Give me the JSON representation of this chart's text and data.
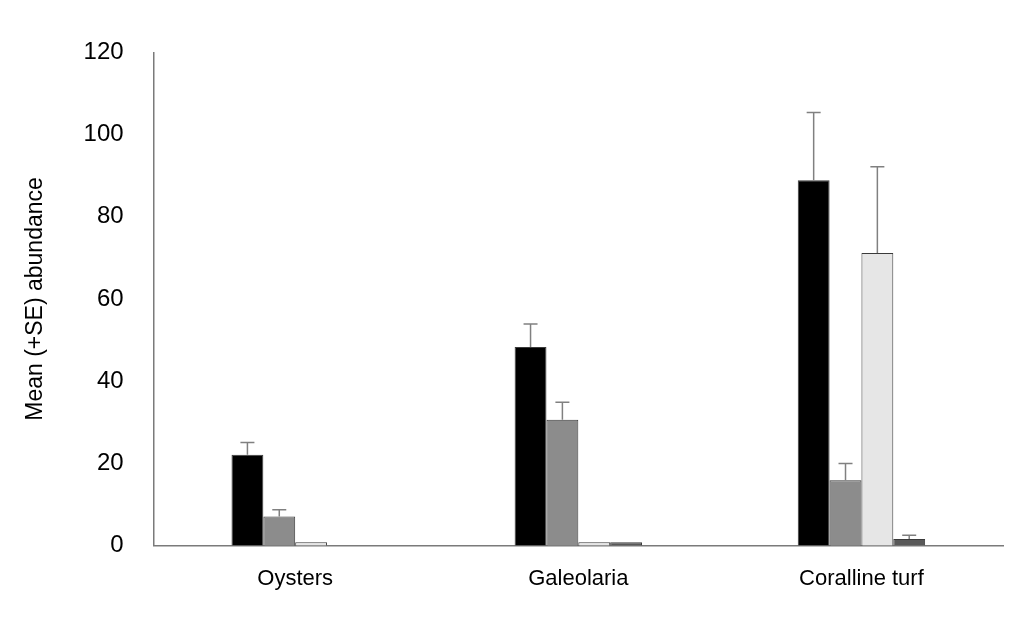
{
  "chart_data": {
    "type": "bar",
    "ylabel": "Mean (+SE) abundance",
    "categories": [
      "Oysters",
      "Galeolaria",
      "Coralline turf"
    ],
    "series": [
      {
        "color": "#000000",
        "values": [
          22.1,
          48.3,
          88.9
        ],
        "errors": [
          [
            22.1,
            25.1
          ],
          [
            48.3,
            53.9
          ],
          [
            88.9,
            105.4
          ]
        ]
      },
      {
        "color": "#8c8c8c",
        "values": [
          7.1,
          30.6,
          15.9
        ],
        "errors": [
          [
            7.1,
            8.7
          ],
          [
            30.6,
            34.9
          ],
          [
            15.9,
            20
          ]
        ]
      },
      {
        "color": "#e6e6e6",
        "values": [
          0.8,
          0.8,
          71.2
        ],
        "errors": [
          null,
          null,
          [
            71.2,
            92.2
          ]
        ]
      },
      {
        "color": "#595959",
        "values": [
          null,
          0.8,
          1.6
        ],
        "errors": [
          null,
          null,
          [
            1.6,
            2.5
          ]
        ]
      }
    ],
    "ylim": [
      0,
      120
    ],
    "yticks": [
      0,
      20,
      40,
      60,
      80,
      100,
      120
    ],
    "grid": false,
    "legend": false
  }
}
